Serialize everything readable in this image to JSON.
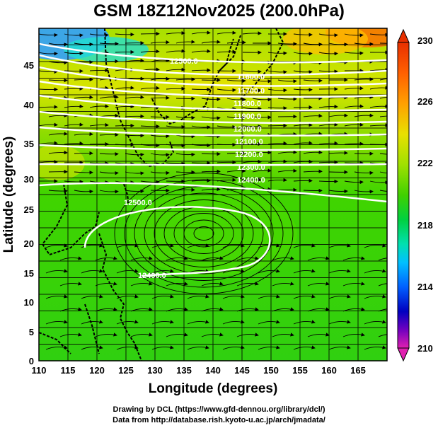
{
  "title": "GSM 18Z12Nov2025 (200.0hPa)",
  "x_axis": {
    "label": "Longitude (degrees)",
    "ticks": [
      "110",
      "115",
      "120",
      "125",
      "130",
      "135",
      "140",
      "145",
      "150",
      "155",
      "160",
      "165"
    ],
    "range": [
      110,
      170
    ]
  },
  "y_axis": {
    "label": "Latitude  (degrees)",
    "ticks": [
      "0",
      "5",
      "10",
      "15",
      "20",
      "25",
      "30",
      "35",
      "40",
      "45"
    ],
    "range": [
      0,
      50
    ]
  },
  "colorbar": {
    "ticks": [
      "230",
      "226",
      "222",
      "218",
      "214",
      "210"
    ],
    "range": [
      210,
      230
    ],
    "colors": [
      "#e020b0",
      "#7000c0",
      "#0000c0",
      "#0060ff",
      "#00c0ff",
      "#00e0b0",
      "#00d040",
      "#40d000",
      "#a0e000",
      "#e8e000",
      "#ffa000",
      "#ff6000",
      "#e83000"
    ]
  },
  "contour_labels": [
    "11600.0",
    "11700.0",
    "11800.0",
    "11900.0",
    "12000.0",
    "12100.0",
    "12200.0",
    "12300.0",
    "12400.0",
    "12500.0",
    "12400.0",
    "12500.0"
  ],
  "credits": {
    "line1": "Drawing by DCL (https://www.gfd-dennou.org/library/dcl/)",
    "line2": "Data from http://database.rish.kyoto-u.ac.jp/arch/jmadata/"
  }
}
